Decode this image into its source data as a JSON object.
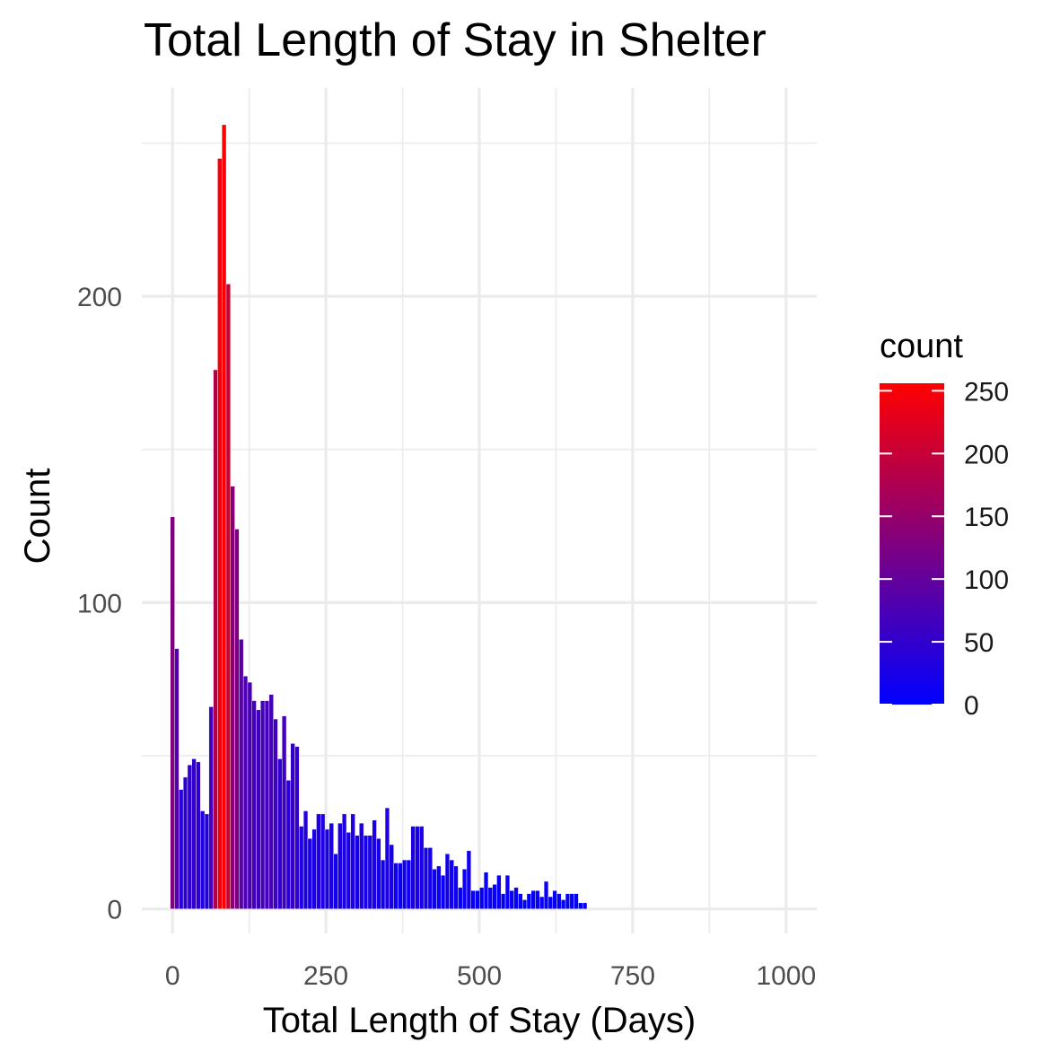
{
  "chart_data": {
    "type": "bar",
    "title": "Total Length of Stay in Shelter",
    "xlabel": "Total Length of Stay (Days)",
    "ylabel": "Count",
    "bin_width": 7,
    "x_ticks": [
      0,
      250,
      500,
      750,
      1000
    ],
    "y_ticks": [
      0,
      100,
      200
    ],
    "xlim": [
      -50,
      1050
    ],
    "ylim": [
      -8,
      268
    ],
    "grid": true,
    "bins": [
      {
        "x": 0,
        "count": 128
      },
      {
        "x": 7,
        "count": 85
      },
      {
        "x": 14,
        "count": 39
      },
      {
        "x": 21,
        "count": 43
      },
      {
        "x": 28,
        "count": 47
      },
      {
        "x": 35,
        "count": 49
      },
      {
        "x": 42,
        "count": 48
      },
      {
        "x": 49,
        "count": 32
      },
      {
        "x": 56,
        "count": 31
      },
      {
        "x": 63,
        "count": 66
      },
      {
        "x": 70,
        "count": 176
      },
      {
        "x": 77,
        "count": 245
      },
      {
        "x": 84,
        "count": 256
      },
      {
        "x": 91,
        "count": 204
      },
      {
        "x": 98,
        "count": 138
      },
      {
        "x": 105,
        "count": 124
      },
      {
        "x": 112,
        "count": 88
      },
      {
        "x": 119,
        "count": 76
      },
      {
        "x": 126,
        "count": 74
      },
      {
        "x": 133,
        "count": 68
      },
      {
        "x": 140,
        "count": 65
      },
      {
        "x": 147,
        "count": 68
      },
      {
        "x": 154,
        "count": 68
      },
      {
        "x": 161,
        "count": 70
      },
      {
        "x": 168,
        "count": 62
      },
      {
        "x": 175,
        "count": 49
      },
      {
        "x": 182,
        "count": 63
      },
      {
        "x": 189,
        "count": 42
      },
      {
        "x": 196,
        "count": 54
      },
      {
        "x": 203,
        "count": 53
      },
      {
        "x": 210,
        "count": 27
      },
      {
        "x": 217,
        "count": 32
      },
      {
        "x": 224,
        "count": 23
      },
      {
        "x": 231,
        "count": 26
      },
      {
        "x": 238,
        "count": 31
      },
      {
        "x": 245,
        "count": 31
      },
      {
        "x": 252,
        "count": 26
      },
      {
        "x": 259,
        "count": 28
      },
      {
        "x": 266,
        "count": 18
      },
      {
        "x": 273,
        "count": 28
      },
      {
        "x": 280,
        "count": 31
      },
      {
        "x": 287,
        "count": 25
      },
      {
        "x": 294,
        "count": 31
      },
      {
        "x": 301,
        "count": 24
      },
      {
        "x": 308,
        "count": 28
      },
      {
        "x": 315,
        "count": 24
      },
      {
        "x": 322,
        "count": 24
      },
      {
        "x": 329,
        "count": 29
      },
      {
        "x": 336,
        "count": 23
      },
      {
        "x": 343,
        "count": 16
      },
      {
        "x": 350,
        "count": 33
      },
      {
        "x": 357,
        "count": 21
      },
      {
        "x": 364,
        "count": 15
      },
      {
        "x": 371,
        "count": 15
      },
      {
        "x": 378,
        "count": 16
      },
      {
        "x": 385,
        "count": 16
      },
      {
        "x": 392,
        "count": 27
      },
      {
        "x": 399,
        "count": 27
      },
      {
        "x": 406,
        "count": 27
      },
      {
        "x": 413,
        "count": 20
      },
      {
        "x": 420,
        "count": 20
      },
      {
        "x": 427,
        "count": 13
      },
      {
        "x": 434,
        "count": 14
      },
      {
        "x": 441,
        "count": 11
      },
      {
        "x": 448,
        "count": 18
      },
      {
        "x": 455,
        "count": 16
      },
      {
        "x": 462,
        "count": 14
      },
      {
        "x": 469,
        "count": 7
      },
      {
        "x": 476,
        "count": 13
      },
      {
        "x": 483,
        "count": 19
      },
      {
        "x": 490,
        "count": 6
      },
      {
        "x": 497,
        "count": 6
      },
      {
        "x": 504,
        "count": 7
      },
      {
        "x": 511,
        "count": 12
      },
      {
        "x": 518,
        "count": 7
      },
      {
        "x": 525,
        "count": 8
      },
      {
        "x": 532,
        "count": 11
      },
      {
        "x": 539,
        "count": 5
      },
      {
        "x": 546,
        "count": 11
      },
      {
        "x": 553,
        "count": 6
      },
      {
        "x": 560,
        "count": 7
      },
      {
        "x": 567,
        "count": 5
      },
      {
        "x": 574,
        "count": 3
      },
      {
        "x": 581,
        "count": 5
      },
      {
        "x": 588,
        "count": 6
      },
      {
        "x": 595,
        "count": 6
      },
      {
        "x": 602,
        "count": 4
      },
      {
        "x": 609,
        "count": 9
      },
      {
        "x": 616,
        "count": 4
      },
      {
        "x": 623,
        "count": 6
      },
      {
        "x": 630,
        "count": 5
      },
      {
        "x": 637,
        "count": 3
      },
      {
        "x": 644,
        "count": 5
      },
      {
        "x": 651,
        "count": 5
      },
      {
        "x": 658,
        "count": 5
      },
      {
        "x": 665,
        "count": 2
      },
      {
        "x": 672,
        "count": 2
      }
    ]
  },
  "legend": {
    "title": "count",
    "labels": [
      "250",
      "200",
      "150",
      "100",
      "50",
      "0"
    ],
    "breaks": [
      250,
      200,
      150,
      100,
      50,
      0
    ],
    "range": [
      0,
      256
    ],
    "low_color": "#0000ff",
    "high_color": "#ff0000"
  }
}
